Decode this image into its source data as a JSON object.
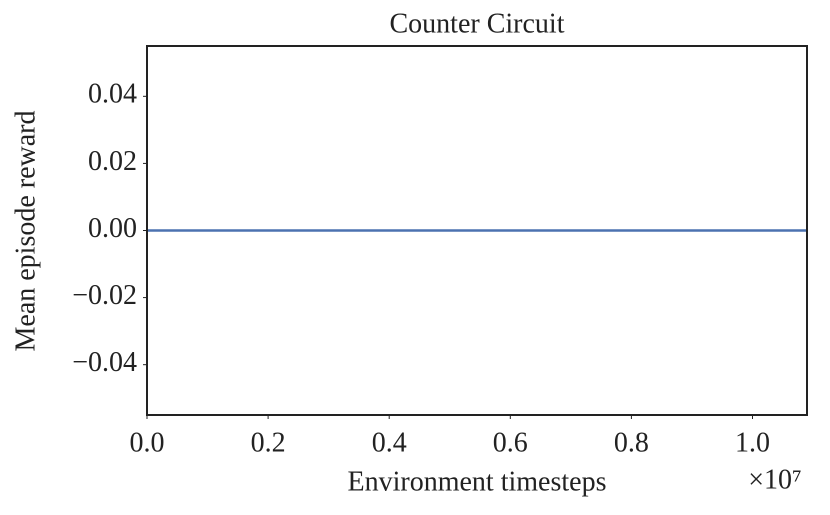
{
  "chart_data": {
    "type": "line",
    "title": "Counter Circuit",
    "x_label": "Environment timesteps",
    "y_label": "Mean episode reward",
    "x_offset_label": "×10⁷",
    "x": [
      0,
      10900000
    ],
    "series": [
      {
        "color": "#4c72b0",
        "values": [
          0,
          0
        ]
      }
    ],
    "xlim": [
      0,
      10900000
    ],
    "xticks": [
      {
        "value": 0,
        "label": "0.0"
      },
      {
        "value": 2000000,
        "label": "0.2"
      },
      {
        "value": 4000000,
        "label": "0.4"
      },
      {
        "value": 6000000,
        "label": "0.6"
      },
      {
        "value": 8000000,
        "label": "0.8"
      },
      {
        "value": 10000000,
        "label": "1.0"
      }
    ],
    "ylim": [
      -0.055,
      0.055
    ],
    "yticks": [
      {
        "value": -0.04,
        "label": "−0.04"
      },
      {
        "value": -0.02,
        "label": "−0.02"
      },
      {
        "value": 0,
        "label": "0.00"
      },
      0.02,
      0.04
    ],
    "grid": false
  }
}
